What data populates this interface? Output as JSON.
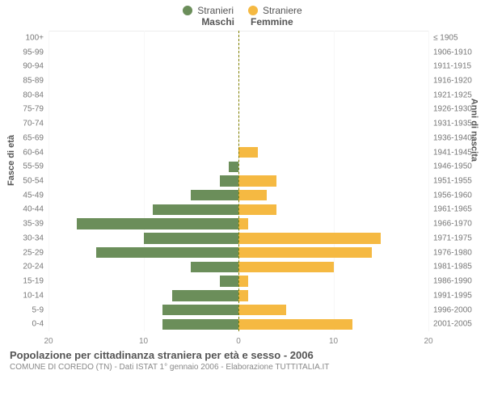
{
  "legend": {
    "male": {
      "label": "Stranieri",
      "color": "#6b8e5a"
    },
    "female": {
      "label": "Straniere",
      "color": "#f5b942"
    }
  },
  "headers": {
    "male": "Maschi",
    "female": "Femmine"
  },
  "axis_labels": {
    "left": "Fasce di età",
    "right": "Anni di nascita"
  },
  "chart": {
    "type": "population-pyramid",
    "xlim": 20,
    "xticks": [
      20,
      10,
      0,
      10,
      20
    ],
    "background_color": "#ffffff",
    "grid_color": "#f7f7f7",
    "center_line_color": "#808000",
    "bar_colors": {
      "male": "#6b8e5a",
      "female": "#f5b942"
    },
    "bar_height_pct": 76,
    "font": {
      "tick_size": 10,
      "label_size": 11,
      "header_size": 12
    },
    "rows": [
      {
        "age": "100+",
        "birth": "≤ 1905",
        "male": 0,
        "female": 0
      },
      {
        "age": "95-99",
        "birth": "1906-1910",
        "male": 0,
        "female": 0
      },
      {
        "age": "90-94",
        "birth": "1911-1915",
        "male": 0,
        "female": 0
      },
      {
        "age": "85-89",
        "birth": "1916-1920",
        "male": 0,
        "female": 0
      },
      {
        "age": "80-84",
        "birth": "1921-1925",
        "male": 0,
        "female": 0
      },
      {
        "age": "75-79",
        "birth": "1926-1930",
        "male": 0,
        "female": 0
      },
      {
        "age": "70-74",
        "birth": "1931-1935",
        "male": 0,
        "female": 0
      },
      {
        "age": "65-69",
        "birth": "1936-1940",
        "male": 0,
        "female": 0
      },
      {
        "age": "60-64",
        "birth": "1941-1945",
        "male": 0,
        "female": 2
      },
      {
        "age": "55-59",
        "birth": "1946-1950",
        "male": 1,
        "female": 0
      },
      {
        "age": "50-54",
        "birth": "1951-1955",
        "male": 2,
        "female": 4
      },
      {
        "age": "45-49",
        "birth": "1956-1960",
        "male": 5,
        "female": 3
      },
      {
        "age": "40-44",
        "birth": "1961-1965",
        "male": 9,
        "female": 4
      },
      {
        "age": "35-39",
        "birth": "1966-1970",
        "male": 17,
        "female": 1
      },
      {
        "age": "30-34",
        "birth": "1971-1975",
        "male": 10,
        "female": 15
      },
      {
        "age": "25-29",
        "birth": "1976-1980",
        "male": 15,
        "female": 14
      },
      {
        "age": "20-24",
        "birth": "1981-1985",
        "male": 5,
        "female": 10
      },
      {
        "age": "15-19",
        "birth": "1986-1990",
        "male": 2,
        "female": 1
      },
      {
        "age": "10-14",
        "birth": "1991-1995",
        "male": 7,
        "female": 1
      },
      {
        "age": "5-9",
        "birth": "1996-2000",
        "male": 8,
        "female": 5
      },
      {
        "age": "0-4",
        "birth": "2001-2005",
        "male": 8,
        "female": 12
      }
    ]
  },
  "footer": {
    "title": "Popolazione per cittadinanza straniera per età e sesso - 2006",
    "subtitle": "COMUNE DI COREDO (TN) - Dati ISTAT 1° gennaio 2006 - Elaborazione TUTTITALIA.IT"
  }
}
